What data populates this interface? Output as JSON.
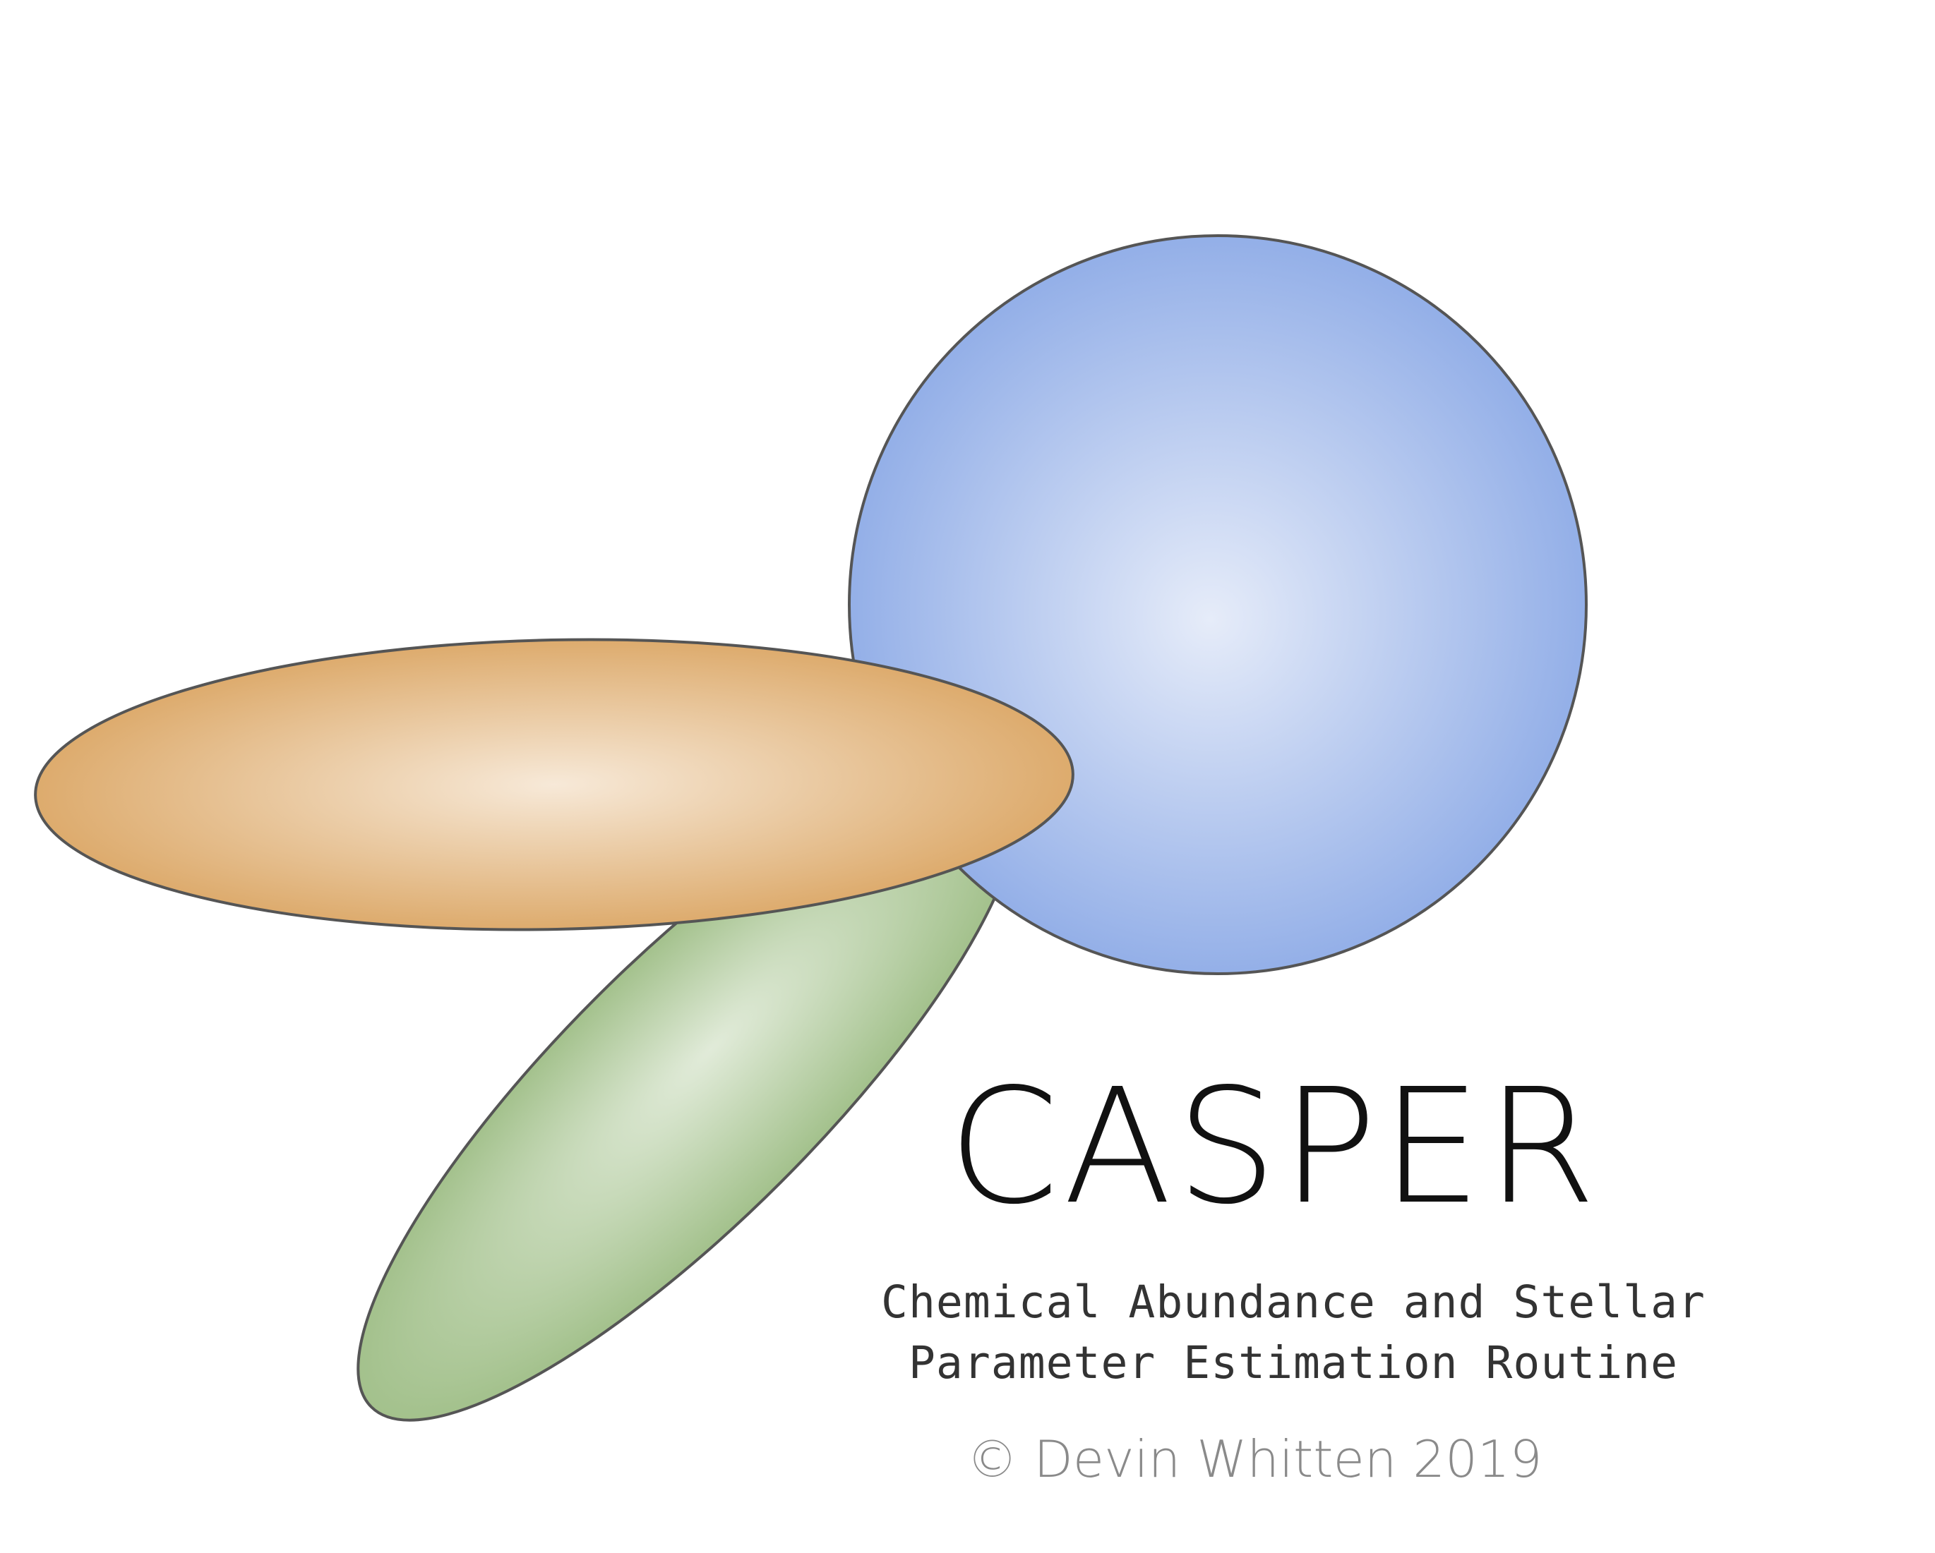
{
  "logo": {
    "name": "CASPER",
    "tagline_line1": "Chemical Abundance and Stellar",
    "tagline_line2": "Parameter Estimation Routine",
    "copyright": "© Devin Whitten 2019"
  },
  "colors": {
    "background": "#ffffff",
    "outline": "#555555",
    "blue_center": "#e6ecf9",
    "blue_edge": "#8ba9e6",
    "orange_center": "#f7e9d8",
    "orange_edge": "#ddab6d",
    "green_center": "#e1ebd9",
    "green_edge": "#a3c18c",
    "wordmark": "#111111",
    "tagline": "#333333",
    "copyright": "#8a8a8a"
  },
  "icons": {
    "blue_shape": "blue-sphere-icon",
    "orange_shape": "orange-ellipse-icon",
    "green_shape": "green-ellipse-icon"
  }
}
